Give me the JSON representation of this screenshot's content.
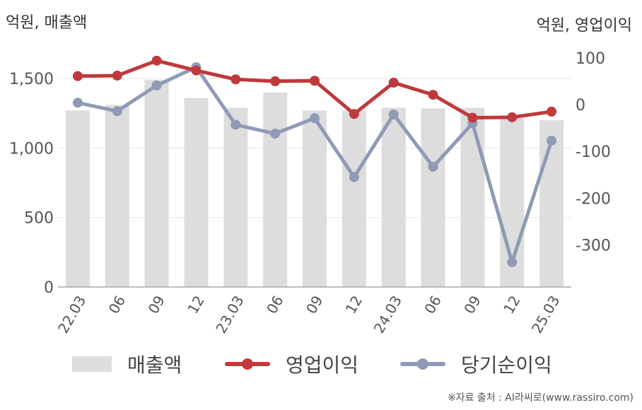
{
  "units": {
    "left": "억원, 매출액",
    "right": "억원, 영업이익"
  },
  "source": "※자료 출처 : AI라씨로(www.rassiro.com)",
  "colors": {
    "bar": "#dddddd",
    "op_income": "#c0393b",
    "net_income": "#8f9ab5",
    "grid": "#e6e6e6",
    "axis": "#aaaaaa"
  },
  "chart_data": {
    "type": "bar",
    "categories": [
      "22.03",
      "06",
      "09",
      "12",
      "23.03",
      "06",
      "09",
      "12",
      "24.03",
      "06",
      "09",
      "12",
      "25.03"
    ],
    "left_axis": {
      "ylim": [
        0,
        1750
      ],
      "ticks": [
        0,
        500,
        1000,
        1500
      ],
      "tick_labels": [
        "0",
        "500",
        "1,000",
        "1,500"
      ]
    },
    "right_axis": {
      "ylim": [
        -390,
        130
      ],
      "ticks": [
        -300,
        -200,
        -100,
        0,
        100
      ],
      "tick_labels": [
        "-300",
        "-200",
        "-100",
        "0",
        "100"
      ]
    },
    "grid": true,
    "legend_position": "bottom",
    "series": [
      {
        "name": "매출액",
        "type": "bar",
        "axis": "left",
        "values": [
          1270,
          1310,
          1490,
          1360,
          1290,
          1400,
          1270,
          1270,
          1290,
          1285,
          1290,
          1215,
          1200
        ]
      },
      {
        "name": "영업이익",
        "type": "line",
        "axis": "right",
        "values": [
          61,
          62,
          94,
          73,
          54,
          50,
          51,
          -20,
          47,
          21,
          -28,
          -27,
          -15
        ]
      },
      {
        "name": "당기순이익",
        "type": "line",
        "axis": "right",
        "values": [
          4,
          -14,
          41,
          80,
          -43,
          -62,
          -29,
          -155,
          -21,
          -133,
          -40,
          -337,
          -77
        ]
      }
    ]
  }
}
